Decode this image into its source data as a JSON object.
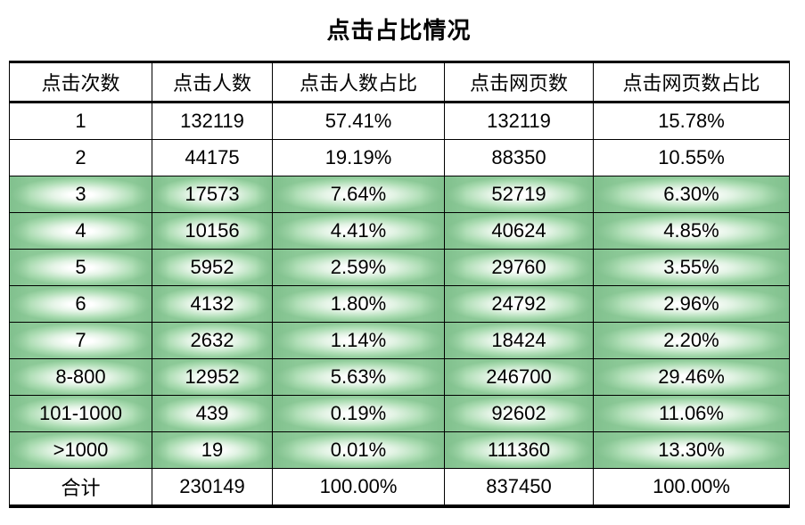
{
  "page": {
    "title": "点击占比情况",
    "background": "#ffffff"
  },
  "colors": {
    "text": "#000000",
    "border": "#000000",
    "highlight_green_edge": "#8cc997",
    "highlight_green_dark": "#7abb88",
    "highlight_center": "#ffffff"
  },
  "table": {
    "headers": [
      "点击次数",
      "点击人数",
      "点击人数占比",
      "点击网页数",
      "点击网页数占比"
    ],
    "rows": [
      {
        "highlight": false,
        "cells": [
          "1",
          "132119",
          "57.41%",
          "132119",
          "15.78%"
        ]
      },
      {
        "highlight": false,
        "cells": [
          "2",
          "44175",
          "19.19%",
          "88350",
          "10.55%"
        ]
      },
      {
        "highlight": true,
        "cells": [
          "3",
          "17573",
          "7.64%",
          "52719",
          "6.30%"
        ]
      },
      {
        "highlight": true,
        "cells": [
          "4",
          "10156",
          "4.41%",
          "40624",
          "4.85%"
        ]
      },
      {
        "highlight": true,
        "cells": [
          "5",
          "5952",
          "2.59%",
          "29760",
          "3.55%"
        ]
      },
      {
        "highlight": true,
        "cells": [
          "6",
          "4132",
          "1.80%",
          "24792",
          "2.96%"
        ]
      },
      {
        "highlight": true,
        "cells": [
          "7",
          "2632",
          "1.14%",
          "18424",
          "2.20%"
        ]
      },
      {
        "highlight": true,
        "cells": [
          "8-800",
          "12952",
          "5.63%",
          "246700",
          "29.46%"
        ]
      },
      {
        "highlight": true,
        "cells": [
          "101-1000",
          "439",
          "0.19%",
          "92602",
          "11.06%"
        ]
      },
      {
        "highlight": true,
        "cells": [
          ">1000",
          "19",
          "0.01%",
          "111360",
          "13.30%"
        ]
      },
      {
        "highlight": false,
        "cells": [
          "合计",
          "230149",
          "100.00%",
          "837450",
          "100.00%"
        ]
      }
    ]
  },
  "chart_data": {
    "type": "table",
    "title": "点击占比情况",
    "columns": [
      "点击次数",
      "点击人数",
      "点击人数占比",
      "点击网页数",
      "点击网页数占比"
    ],
    "rows": [
      [
        "1",
        132119,
        "57.41%",
        132119,
        "15.78%"
      ],
      [
        "2",
        44175,
        "19.19%",
        88350,
        "10.55%"
      ],
      [
        "3",
        17573,
        "7.64%",
        52719,
        "6.30%"
      ],
      [
        "4",
        10156,
        "4.41%",
        40624,
        "4.85%"
      ],
      [
        "5",
        5952,
        "2.59%",
        29760,
        "3.55%"
      ],
      [
        "6",
        4132,
        "1.80%",
        24792,
        "2.96%"
      ],
      [
        "7",
        2632,
        "1.14%",
        18424,
        "2.20%"
      ],
      [
        "8-800",
        12952,
        "5.63%",
        246700,
        "29.46%"
      ],
      [
        "101-1000",
        439,
        "0.19%",
        92602,
        "11.06%"
      ],
      [
        ">1000",
        19,
        "0.01%",
        111360,
        "13.30%"
      ],
      [
        "合计",
        230149,
        "100.00%",
        837450,
        "100.00%"
      ]
    ],
    "highlighted_rows": [
      "3",
      "4",
      "5",
      "6",
      "7",
      "8-800",
      "101-1000",
      ">1000"
    ],
    "layout": {
      "highlight_style": "green satin gradient (white center, green edges)",
      "header_border": "thick black top and bottom",
      "bottom_border": "thick black"
    }
  }
}
